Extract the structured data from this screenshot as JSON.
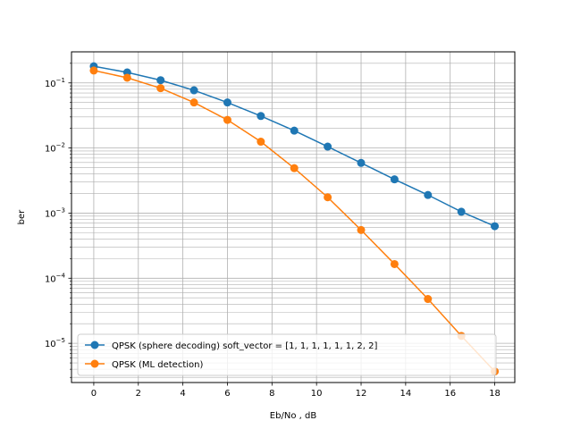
{
  "chart_data": {
    "type": "line",
    "title": "",
    "xlabel": "Eb/No , dB",
    "ylabel": "ber",
    "xlim": [
      -1,
      18.9
    ],
    "ylim": [
      2.5e-06,
      0.3
    ],
    "yscale": "log",
    "grid": true,
    "grid_minor_y": true,
    "legend_position": "lower-left",
    "x_ticks": [
      0,
      2,
      4,
      6,
      8,
      10,
      12,
      14,
      16,
      18
    ],
    "x_tick_labels": [
      "0",
      "2",
      "4",
      "6",
      "8",
      "10",
      "12",
      "14",
      "16",
      "18"
    ],
    "y_ticks": [
      1e-05,
      0.0001,
      0.001,
      0.01,
      0.1
    ],
    "y_tick_labels": [
      {
        "base": "10",
        "exp": "−5"
      },
      {
        "base": "10",
        "exp": "−4"
      },
      {
        "base": "10",
        "exp": "−3"
      },
      {
        "base": "10",
        "exp": "−2"
      },
      {
        "base": "10",
        "exp": "−1"
      }
    ],
    "series": [
      {
        "name": "QPSK (sphere decoding) soft_vector = [1, 1, 1, 1, 1, 1, 2, 2]",
        "color": "#1f77b4",
        "x": [
          0,
          1.5,
          3,
          4.5,
          6,
          7.5,
          9,
          10.5,
          12,
          13.5,
          15,
          16.5,
          18
        ],
        "y": [
          0.18,
          0.145,
          0.11,
          0.077,
          0.05,
          0.031,
          0.0185,
          0.0105,
          0.0059,
          0.0033,
          0.0019,
          0.00105,
          0.00063
        ]
      },
      {
        "name": "QPSK (ML detection)",
        "color": "#ff7f0e",
        "x": [
          0,
          1.5,
          3,
          4.5,
          6,
          7.5,
          9,
          10.5,
          12,
          13.5,
          15,
          16.5,
          18
        ],
        "y": [
          0.155,
          0.12,
          0.083,
          0.05,
          0.027,
          0.0125,
          0.0049,
          0.00175,
          0.00055,
          0.000165,
          4.8e-05,
          1.3e-05,
          3.7e-06
        ]
      }
    ]
  }
}
